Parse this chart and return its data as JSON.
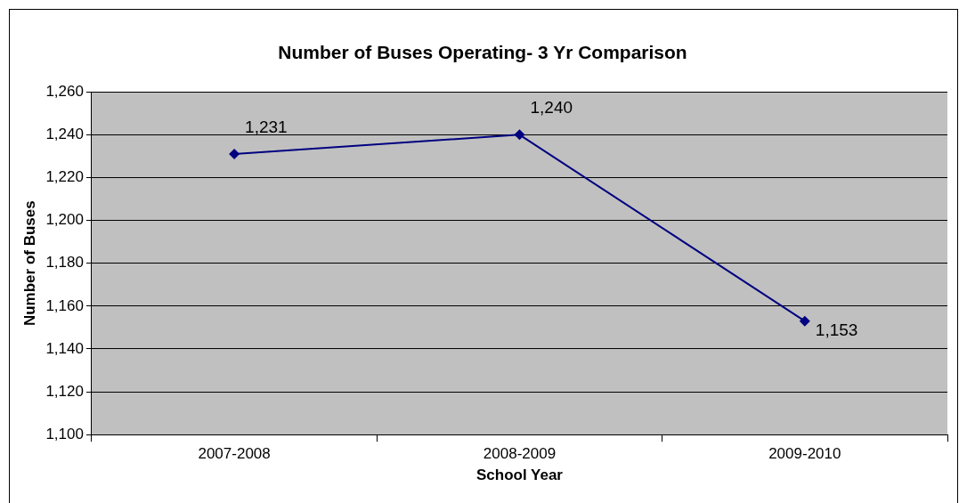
{
  "chart_data": {
    "type": "line",
    "title": "Number of Buses Operating- 3 Yr Comparison",
    "xlabel": "School Year",
    "ylabel": "Number of Buses",
    "categories": [
      "2007-2008",
      "2008-2009",
      "2009-2010"
    ],
    "series": [
      {
        "color": "#000080",
        "values": [
          1231,
          1240,
          1153
        ],
        "value_labels": [
          "1,231",
          "1,240",
          "1,153"
        ]
      }
    ],
    "ylim": [
      1100,
      1260
    ],
    "yticks": [
      {
        "value": 1100,
        "label": "1,100"
      },
      {
        "value": 1120,
        "label": "1,120"
      },
      {
        "value": 1140,
        "label": "1,140"
      },
      {
        "value": 1160,
        "label": "1,160"
      },
      {
        "value": 1180,
        "label": "1,180"
      },
      {
        "value": 1200,
        "label": "1,200"
      },
      {
        "value": 1220,
        "label": "1,220"
      },
      {
        "value": 1240,
        "label": "1,240"
      },
      {
        "value": 1260,
        "label": "1,260"
      }
    ],
    "grid": "y",
    "legend": false,
    "marker": "diamond",
    "line_style": "solid"
  }
}
